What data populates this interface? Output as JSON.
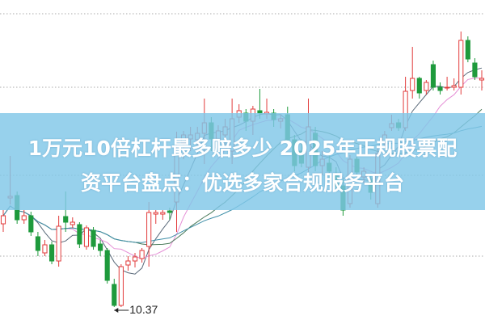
{
  "banner": {
    "line1": "1万元10倍杠杆最多赔多少 2025年正规股票配",
    "line2": "资平台盘点：优选多家合规服务平台"
  },
  "chart_data": {
    "type": "candlestick",
    "title": "",
    "xlabel": "",
    "ylabel": "",
    "ylim": [
      10.16,
      14.17
    ],
    "grid": "horizontal dotted",
    "gridlines": [
      14.0,
      13.09,
      12.0,
      11.0
    ],
    "annotations": [
      {
        "text": "10.37",
        "target": "lowest low"
      }
    ],
    "moving_averages": [
      5,
      10,
      20,
      30
    ],
    "colors": {
      "up": "#e23b3b",
      "down": "#1e9a3c",
      "ma5": "#5a6a7a",
      "ma10": "#e58fd6",
      "ma20": "#4a7a5a",
      "ma30": "#3f8fa8",
      "banner": "#80c7e8"
    },
    "candles": [
      [
        11.4,
        11.57,
        11.3,
        11.5
      ],
      [
        11.72,
        12.24,
        11.64,
        11.74
      ],
      [
        11.75,
        11.8,
        11.4,
        11.45
      ],
      [
        11.45,
        11.57,
        11.4,
        11.5
      ],
      [
        11.5,
        11.55,
        11.25,
        11.3
      ],
      [
        11.24,
        11.3,
        11.0,
        11.07
      ],
      [
        11.04,
        11.2,
        11.0,
        11.14
      ],
      [
        11.14,
        11.18,
        10.9,
        10.94
      ],
      [
        10.94,
        11.5,
        10.87,
        11.37
      ],
      [
        11.49,
        11.8,
        11.3,
        11.42
      ],
      [
        11.39,
        11.48,
        11.35,
        11.42
      ],
      [
        11.39,
        11.42,
        11.1,
        11.15
      ],
      [
        11.12,
        11.38,
        11.08,
        11.35
      ],
      [
        11.32,
        11.36,
        11.08,
        11.12
      ],
      [
        11.15,
        11.2,
        11.0,
        11.07
      ],
      [
        11.07,
        11.1,
        10.66,
        10.7
      ],
      [
        10.65,
        10.72,
        10.37,
        10.39
      ],
      [
        10.39,
        10.9,
        10.37,
        10.87
      ],
      [
        10.89,
        11.0,
        10.82,
        10.94
      ],
      [
        10.94,
        11.04,
        10.86,
        10.99
      ],
      [
        10.97,
        11.1,
        10.92,
        11.07
      ],
      [
        11.12,
        11.67,
        10.87,
        11.54
      ],
      [
        11.52,
        11.57,
        11.4,
        11.54
      ],
      [
        11.52,
        11.57,
        11.45,
        11.54
      ],
      [
        11.56,
        11.6,
        11.45,
        11.54
      ],
      [
        11.67,
        12.54,
        11.3,
        12.3
      ],
      [
        12.4,
        12.55,
        12.2,
        12.5
      ],
      [
        12.45,
        12.6,
        12.3,
        12.5
      ],
      [
        12.44,
        12.6,
        12.35,
        12.52
      ],
      [
        12.52,
        12.95,
        12.14,
        12.65
      ],
      [
        12.65,
        12.72,
        12.3,
        12.45
      ],
      [
        12.45,
        12.62,
        12.3,
        12.55
      ],
      [
        12.5,
        12.7,
        12.35,
        12.6
      ],
      [
        12.3,
        12.95,
        12.14,
        12.7
      ],
      [
        12.72,
        12.88,
        12.65,
        12.8
      ],
      [
        12.77,
        12.82,
        12.55,
        12.67
      ],
      [
        12.67,
        12.86,
        12.5,
        12.82
      ],
      [
        12.8,
        13.07,
        12.7,
        12.77
      ],
      [
        12.76,
        12.95,
        12.7,
        12.78
      ],
      [
        12.77,
        12.82,
        12.6,
        12.69
      ],
      [
        12.67,
        12.75,
        12.58,
        12.7
      ],
      [
        12.75,
        12.85,
        12.4,
        12.44
      ],
      [
        12.44,
        12.5,
        12.05,
        12.12
      ],
      [
        12.3,
        12.45,
        12.1,
        12.15
      ],
      [
        12.1,
        12.95,
        12.04,
        12.6
      ],
      [
        12.52,
        12.6,
        12.05,
        12.12
      ],
      [
        12.12,
        12.3,
        12.0,
        12.2
      ],
      [
        12.15,
        12.25,
        11.95,
        12.05
      ],
      [
        12.0,
        12.1,
        11.8,
        11.87
      ],
      [
        11.87,
        11.95,
        11.5,
        11.57
      ],
      [
        11.65,
        12.25,
        11.6,
        12.2
      ],
      [
        12.2,
        12.25,
        11.98,
        12.04
      ],
      [
        11.98,
        12.1,
        11.9,
        12.05
      ],
      [
        11.94,
        12.0,
        11.7,
        11.79
      ],
      [
        11.65,
        12.35,
        11.6,
        12.27
      ],
      [
        12.4,
        12.55,
        12.35,
        12.5
      ],
      [
        12.59,
        12.75,
        12.55,
        12.64
      ],
      [
        12.65,
        12.7,
        12.55,
        12.59
      ],
      [
        12.59,
        13.22,
        12.55,
        13.04
      ],
      [
        13.05,
        13.59,
        12.95,
        13.2
      ],
      [
        13.2,
        13.22,
        12.95,
        13.02
      ],
      [
        13.05,
        13.18,
        13.0,
        13.15
      ],
      [
        13.37,
        13.42,
        13.05,
        13.09
      ],
      [
        13.09,
        13.15,
        13.0,
        13.05
      ],
      [
        13.08,
        13.22,
        13.05,
        13.09
      ],
      [
        13.09,
        13.2,
        13.05,
        13.11
      ],
      [
        13.09,
        13.78,
        13.0,
        13.67
      ],
      [
        13.67,
        13.72,
        13.4,
        13.44
      ],
      [
        13.39,
        13.45,
        13.18,
        13.22
      ],
      [
        13.18,
        13.3,
        13.05,
        13.2
      ]
    ]
  }
}
